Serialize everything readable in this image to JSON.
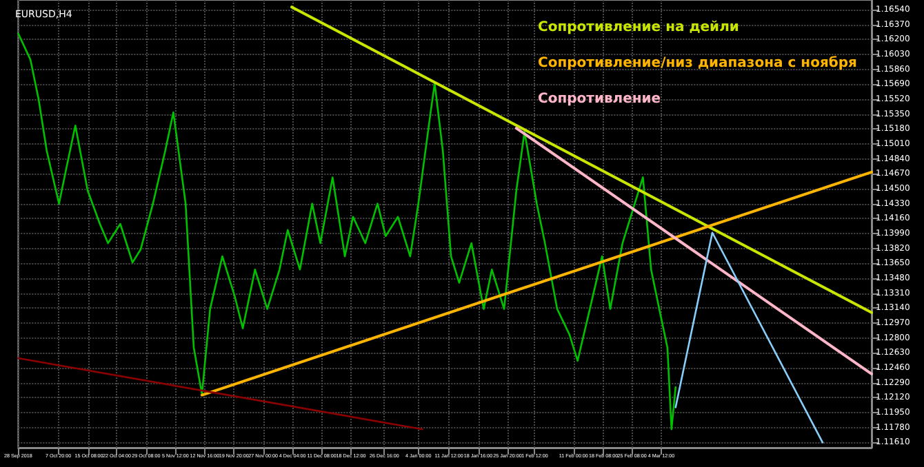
{
  "chart_data": {
    "type": "line",
    "title": "EURUSD,H4",
    "xlim": [
      "2018-09-28",
      "2019-04-25"
    ],
    "ylim": [
      1.1155,
      1.1665
    ],
    "xticks": [
      {
        "value": "2018-09-28",
        "label": "28 Sep 2018"
      },
      {
        "value": "2018-10-07T20:00",
        "label": "7 Oct 20:00"
      },
      {
        "value": "2018-10-15T08:00",
        "label": "15 Oct 08:00"
      },
      {
        "value": "2018-10-22T04:00",
        "label": "22 Oct 04:00"
      },
      {
        "value": "2018-10-29T08:00",
        "label": "29 Oct 08:00"
      },
      {
        "value": "2018-11-05T12:00",
        "label": "5 Nov 12:00"
      },
      {
        "value": "2018-11-12T16:00",
        "label": "12 Nov 16:00"
      },
      {
        "value": "2018-11-19T20:00",
        "label": "19 Nov 20:00"
      },
      {
        "value": "2018-11-27T00:00",
        "label": "27 Nov 00:00"
      },
      {
        "value": "2018-12-04T04:00",
        "label": "4 Dec 04:00"
      },
      {
        "value": "2018-12-11T08:00",
        "label": "11 Dec 08:00"
      },
      {
        "value": "2018-12-18T12:00",
        "label": "18 Dec 12:00"
      },
      {
        "value": "2018-12-26T16:00",
        "label": "26 Dec 16:00"
      },
      {
        "value": "2019-01-04T00:00",
        "label": "4 Jan 00:00"
      },
      {
        "value": "2019-01-11T12:00",
        "label": "11 Jan 12:00"
      },
      {
        "value": "2019-01-18T16:00",
        "label": "18 Jan 16:00"
      },
      {
        "value": "2019-01-25T20:00",
        "label": "25 Jan 20:00"
      },
      {
        "value": "2019-02-01T12:00",
        "label": "1 Feb 12:00"
      },
      {
        "value": "2019-02-11T00:00",
        "label": "11 Feb 00:00"
      },
      {
        "value": "2019-02-18T08:00",
        "label": "18 Feb 08:00"
      },
      {
        "value": "2019-02-25T08:00",
        "label": "25 Feb 08:00"
      },
      {
        "value": "2019-03-04T12:00",
        "label": "4 Mar 12:00"
      }
    ],
    "yticks": [
      {
        "value": 1.1161,
        "label": "1.11610"
      },
      {
        "value": 1.1178,
        "label": "1.11780"
      },
      {
        "value": 1.1195,
        "label": "1.11950"
      },
      {
        "value": 1.1212,
        "label": "1.12120"
      },
      {
        "value": 1.1229,
        "label": "1.12290"
      },
      {
        "value": 1.1246,
        "label": "1.12460"
      },
      {
        "value": 1.1263,
        "label": "1.12630"
      },
      {
        "value": 1.128,
        "label": "1.12800"
      },
      {
        "value": 1.1297,
        "label": "1.12970"
      },
      {
        "value": 1.1314,
        "label": "1.13140"
      },
      {
        "value": 1.1331,
        "label": "1.13310"
      },
      {
        "value": 1.1348,
        "label": "1.13480"
      },
      {
        "value": 1.1365,
        "label": "1.13650"
      },
      {
        "value": 1.1382,
        "label": "1.13820"
      },
      {
        "value": 1.1399,
        "label": "1.13990"
      },
      {
        "value": 1.1416,
        "label": "1.14160"
      },
      {
        "value": 1.1433,
        "label": "1.14330"
      },
      {
        "value": 1.145,
        "label": "1.14500"
      },
      {
        "value": 1.1467,
        "label": "1.14670"
      },
      {
        "value": 1.1484,
        "label": "1.14840"
      },
      {
        "value": 1.1501,
        "label": "1.15010"
      },
      {
        "value": 1.1518,
        "label": "1.15180"
      },
      {
        "value": 1.1535,
        "label": "1.15350"
      },
      {
        "value": 1.1552,
        "label": "1.15520"
      },
      {
        "value": 1.1569,
        "label": "1.15690"
      },
      {
        "value": 1.1586,
        "label": "1.15860"
      },
      {
        "value": 1.1603,
        "label": "1.16030"
      },
      {
        "value": 1.162,
        "label": "1.16200"
      },
      {
        "value": 1.1637,
        "label": "1.16370"
      },
      {
        "value": 1.1654,
        "label": "1.16540"
      }
    ],
    "grid": true,
    "legend": "top",
    "line_style": "solid",
    "series": [
      {
        "color": "#00c000",
        "x": [
          "2018-09-28",
          "2018-10-01",
          "2018-10-03",
          "2018-10-05",
          "2018-10-08",
          "2018-10-10",
          "2018-10-12",
          "2018-10-15",
          "2018-10-18",
          "2018-10-20",
          "2018-10-23",
          "2018-10-26",
          "2018-10-28",
          "2018-10-31",
          "2018-11-03",
          "2018-11-05",
          "2018-11-08",
          "2018-11-10",
          "2018-11-12",
          "2018-11-14",
          "2018-11-17",
          "2018-11-20",
          "2018-11-22",
          "2018-11-25",
          "2018-11-28",
          "2018-12-01",
          "2018-12-03",
          "2018-12-06",
          "2018-12-09",
          "2018-12-11",
          "2018-12-14",
          "2018-12-17",
          "2018-12-19",
          "2018-12-22",
          "2018-12-25",
          "2018-12-27",
          "2018-12-30",
          "2019-01-02",
          "2019-01-04",
          "2019-01-07",
          "2019-01-08",
          "2019-01-10",
          "2019-01-12",
          "2019-01-14",
          "2019-01-17",
          "2019-01-20",
          "2019-01-22",
          "2019-01-25",
          "2019-01-28",
          "2019-01-30",
          "2019-02-02",
          "2019-02-04",
          "2019-02-07",
          "2019-02-10",
          "2019-02-12",
          "2019-02-15",
          "2019-02-18",
          "2019-02-20",
          "2019-02-23",
          "2019-02-26",
          "2019-02-28",
          "2019-03-02",
          "2019-03-04",
          "2019-03-06",
          "2019-03-07",
          "2019-03-08"
        ],
        "values": [
          1.1627,
          1.1597,
          1.1552,
          1.1493,
          1.1433,
          1.1478,
          1.1522,
          1.1448,
          1.141,
          1.1388,
          1.141,
          1.1366,
          1.1381,
          1.1433,
          1.1493,
          1.1537,
          1.1433,
          1.1269,
          1.1216,
          1.1313,
          1.1373,
          1.1328,
          1.1291,
          1.1358,
          1.1313,
          1.1358,
          1.1403,
          1.1358,
          1.1433,
          1.1388,
          1.1463,
          1.1373,
          1.1418,
          1.1388,
          1.1433,
          1.1396,
          1.1418,
          1.1373,
          1.1433,
          1.1537,
          1.157,
          1.1493,
          1.1373,
          1.1343,
          1.1388,
          1.1313,
          1.1358,
          1.1313,
          1.1448,
          1.1515,
          1.1433,
          1.1388,
          1.1313,
          1.1284,
          1.1254,
          1.1313,
          1.1373,
          1.1313,
          1.1388,
          1.1433,
          1.1463,
          1.1358,
          1.1313,
          1.1269,
          1.1176,
          1.1224
        ]
      },
      {
        "name": "Сопротивление на дейли",
        "color": "#c8e600",
        "x": [
          "2018-12-04",
          "2019-04-25"
        ],
        "values": [
          1.1657,
          1.1309
        ]
      },
      {
        "name": "Сопротивление/низ диапазона с ноября",
        "color": "#ffb400",
        "x": [
          "2018-11-12",
          "2019-04-25"
        ],
        "values": [
          1.1215,
          1.1469
        ]
      },
      {
        "name": "Сопротивление",
        "color": "#ffb6c8",
        "x": [
          "2019-01-28",
          "2019-04-25"
        ],
        "values": [
          1.1519,
          1.1239
        ]
      },
      {
        "color": "#8b0000",
        "x": [
          "2018-09-28",
          "2019-01-05"
        ],
        "values": [
          1.1257,
          1.1176
        ]
      },
      {
        "color": "#87cefa",
        "x": [
          "2019-03-08",
          "2019-03-17",
          "2019-04-13"
        ],
        "values": [
          1.1201,
          1.14,
          1.1161
        ]
      }
    ]
  }
}
